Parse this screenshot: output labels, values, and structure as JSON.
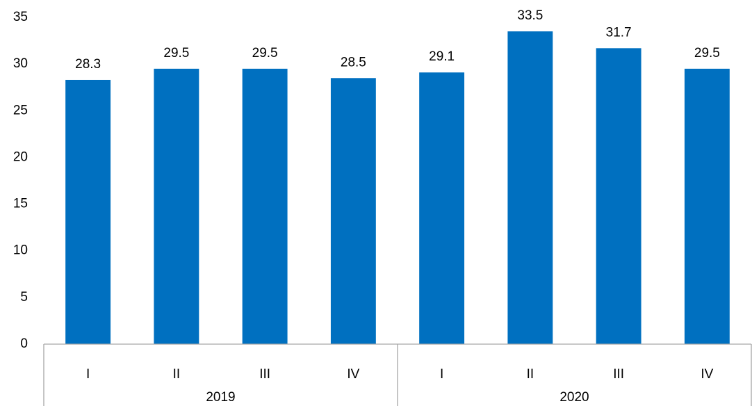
{
  "chart_data": {
    "type": "bar",
    "categories": [
      "I",
      "II",
      "III",
      "IV",
      "I",
      "II",
      "III",
      "IV"
    ],
    "groups": [
      "2019",
      "2020"
    ],
    "values": [
      28.3,
      29.5,
      29.5,
      28.5,
      29.1,
      33.5,
      31.7,
      29.5
    ],
    "color": "#0070c0",
    "ylim": [
      0,
      35
    ],
    "yticks": [
      0,
      5,
      10,
      15,
      20,
      25,
      30,
      35
    ],
    "grid": false,
    "data_labels": true
  }
}
